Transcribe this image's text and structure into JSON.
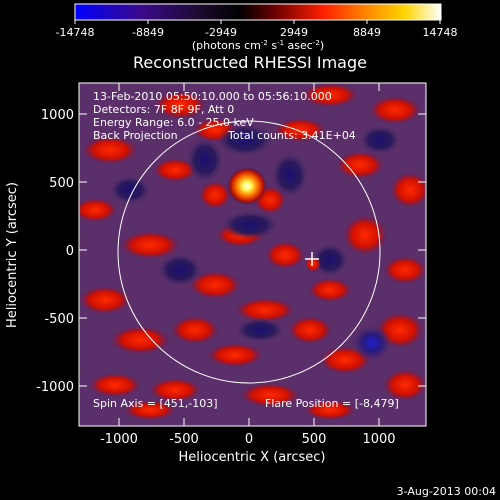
{
  "colorbar": {
    "tick_labels": [
      "-14748",
      "-8849",
      "-2949",
      "2949",
      "8849",
      "14748"
    ],
    "units_main": "(photons cm",
    "units_sup1": "-2",
    "units_mid": " s",
    "units_sup2": "-1",
    "units_end": " asec",
    "units_sup3": "-2",
    "units_close": ")",
    "color_stops": [
      "#0000ff",
      "#3a0a8a",
      "#1a0a2a",
      "#000000",
      "#b00000",
      "#ff2000",
      "#ff8a00",
      "#ffd400",
      "#ffffff"
    ]
  },
  "title": "Reconstructed RHESSI Image",
  "info": {
    "line1": "13-Feb-2010 05:50:10.000 to 05:56:10.000",
    "line2": "Detectors: 7F 8F 9F, Att 0",
    "line3": "Energy Range: 6.0 - 25.0 keV",
    "line4_a": "Back Projection",
    "line4_b": "Total counts: 3.41E+04"
  },
  "footer_left": "Spin Axis = [451,-103]",
  "footer_right": "Flare Position = [-8,479]",
  "axes": {
    "xlabel": "Heliocentric X (arcsec)",
    "ylabel": "Heliocentric Y (arcsec)",
    "x_ticks": [
      "-1000",
      "-500",
      "0",
      "500",
      "1000"
    ],
    "y_ticks": [
      "1000",
      "500",
      "0",
      "-500",
      "-1000"
    ]
  },
  "date_stamp": "3-Aug-2013 00:04",
  "image": {
    "background_color": "#5a2f6a",
    "bright_source_color": "#ffff80",
    "solar_limb_color": "#ffffff"
  }
}
